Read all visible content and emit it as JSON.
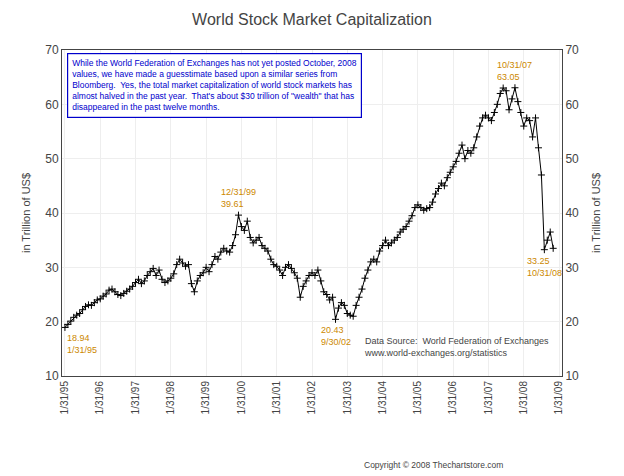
{
  "chart_data": {
    "type": "line",
    "title": "World Stock Market Capitalization",
    "ylabel": "in Trillion of US$",
    "y2label": "in Trillion of US$",
    "color": "#000000",
    "marker": "plus",
    "grid": true,
    "ylim": [
      10,
      70
    ],
    "yticks": [
      10,
      20,
      30,
      40,
      50,
      60,
      70
    ],
    "y2lim": [
      10,
      70
    ],
    "y2ticks": [
      10,
      20,
      30,
      40,
      50,
      60,
      70
    ],
    "categories": [
      "1/31/95",
      null,
      null,
      null,
      null,
      null,
      null,
      null,
      null,
      null,
      null,
      null,
      "1/31/96",
      null,
      null,
      null,
      null,
      null,
      null,
      null,
      null,
      null,
      null,
      null,
      "1/31/97",
      null,
      null,
      null,
      null,
      null,
      null,
      null,
      null,
      null,
      null,
      null,
      "1/31/98",
      null,
      null,
      null,
      null,
      null,
      null,
      null,
      null,
      null,
      null,
      null,
      "1/31/99",
      null,
      null,
      null,
      null,
      null,
      null,
      null,
      null,
      null,
      null,
      null,
      "1/31/00",
      null,
      null,
      null,
      null,
      null,
      null,
      null,
      null,
      null,
      null,
      null,
      "1/31/01",
      null,
      null,
      null,
      null,
      null,
      null,
      null,
      null,
      null,
      null,
      null,
      "1/31/02",
      null,
      null,
      null,
      null,
      null,
      null,
      null,
      null,
      null,
      null,
      null,
      "1/31/03",
      null,
      null,
      null,
      null,
      null,
      null,
      null,
      null,
      null,
      null,
      null,
      "1/31/04",
      null,
      null,
      null,
      null,
      null,
      null,
      null,
      null,
      null,
      null,
      null,
      "1/31/05",
      null,
      null,
      null,
      null,
      null,
      null,
      null,
      null,
      null,
      null,
      null,
      "1/31/06",
      null,
      null,
      null,
      null,
      null,
      null,
      null,
      null,
      null,
      null,
      null,
      "1/31/07",
      null,
      null,
      null,
      null,
      null,
      null,
      null,
      null,
      null,
      null,
      null,
      "1/31/08",
      null,
      null,
      null,
      null,
      null,
      null,
      null,
      null,
      null,
      null,
      null,
      "1/31/09"
    ],
    "values": [
      18.94,
      19.5,
      20.1,
      20.8,
      21.2,
      21.5,
      22.2,
      22.8,
      23.1,
      23.0,
      23.5,
      24.0,
      24.2,
      24.7,
      25.1,
      25.8,
      26.0,
      25.5,
      25.0,
      24.8,
      25.2,
      25.6,
      26.0,
      26.5,
      27.2,
      27.8,
      27.0,
      27.5,
      28.5,
      29.2,
      29.8,
      28.5,
      29.5,
      27.8,
      27.2,
      27.5,
      28.0,
      28.8,
      30.5,
      31.5,
      30.8,
      30.2,
      30.5,
      27.0,
      25.5,
      27.5,
      28.5,
      29.0,
      30.0,
      29.2,
      30.5,
      32.0,
      31.5,
      32.8,
      33.5,
      33.0,
      32.8,
      34.0,
      36.0,
      39.61,
      37.5,
      36.8,
      38.5,
      35.5,
      34.5,
      35.0,
      35.5,
      34.0,
      33.5,
      33.0,
      31.5,
      30.5,
      30.2,
      29.5,
      28.5,
      30.0,
      30.5,
      29.8,
      29.0,
      28.0,
      24.5,
      26.5,
      27.5,
      28.5,
      29.0,
      28.5,
      29.5,
      27.5,
      25.5,
      25.0,
      24.0,
      24.5,
      20.43,
      22.5,
      23.5,
      23.0,
      21.5,
      21.2,
      21.0,
      23.0,
      24.5,
      26.0,
      28.0,
      29.5,
      31.0,
      31.5,
      31.0,
      33.0,
      34.0,
      35.0,
      34.0,
      34.5,
      35.0,
      35.5,
      36.5,
      37.0,
      37.5,
      38.5,
      39.5,
      41.0,
      41.5,
      41.0,
      40.5,
      40.8,
      41.0,
      42.0,
      43.5,
      44.5,
      45.5,
      45.0,
      46.5,
      47.5,
      48.5,
      49.5,
      51.0,
      52.5,
      50.0,
      51.5,
      51.0,
      52.0,
      54.0,
      56.0,
      57.5,
      58.0,
      57.5,
      57.0,
      58.5,
      60.0,
      62.0,
      63.0,
      62.5,
      59.0,
      61.0,
      63.05,
      60.5,
      58.5,
      56.0,
      57.5,
      57.0,
      54.0,
      57.5,
      52.0,
      47.0,
      33.25,
      35.0,
      36.5,
      33.5,
      null,
      null
    ],
    "annotation_color": "#cc8800",
    "annotations": [
      {
        "text": "18.94\n1/31/95",
        "x": 0,
        "y": 18.94
      },
      {
        "text": "12/31/99\n39.61",
        "x": 59,
        "y": 39.61
      },
      {
        "text": "20.43\n9/30/02",
        "x": 92,
        "y": 20.43
      },
      {
        "text": "10/31/07\n63.05",
        "x": 153,
        "y": 63.05
      },
      {
        "text": "33.25\n10/31/08",
        "x": 163,
        "y": 33.25
      }
    ],
    "text_box": {
      "text": "While the World Federation of Exchanges has not yet posted October, 2008\nvalues, we have made a guesstimate based upon a similar series from\nBloomberg.  Yes, the total market capitalization of world stock markets has\nalmost halved in the past year.  That's about $30 trillion of \"wealth\" that has\ndisappeared in the past twelve months.",
      "color": "#0000cc",
      "border_color": "#0000cc"
    },
    "source": "Data Source:  World Federation of Exchanges\nwww.world-exchanges.org/statistics",
    "footer": "Copyright © 2008 Thechartstore.com"
  }
}
